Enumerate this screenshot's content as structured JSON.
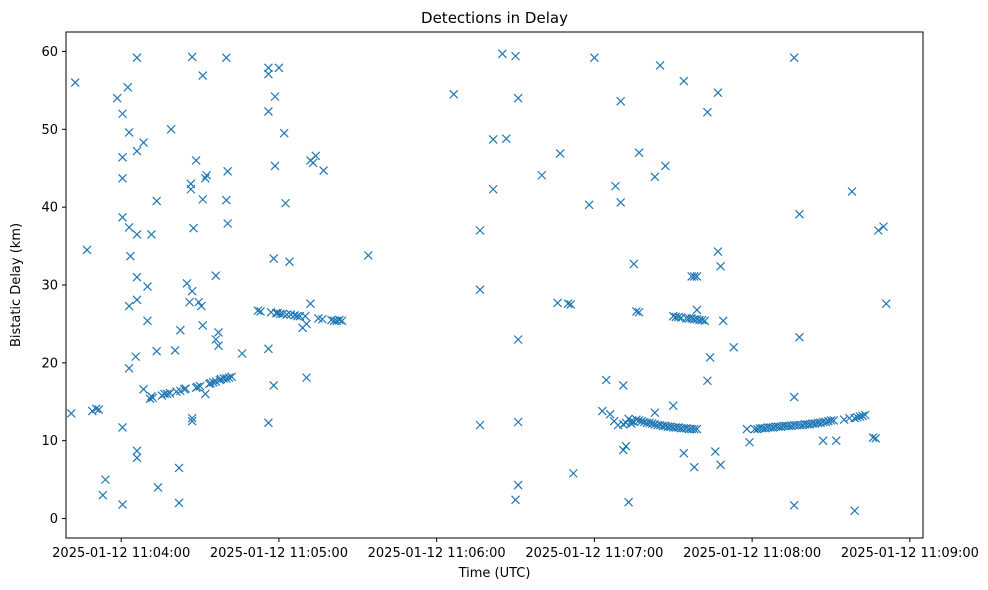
{
  "chart_data": {
    "type": "scatter",
    "title": "Detections in Delay",
    "xlabel": "Time (UTC)",
    "ylabel": "Bistatic Delay (km)",
    "x_unit": "seconds after 2025-01-12 11:04:00",
    "xlim": [
      -21,
      305
    ],
    "ylim": [
      -2.5,
      62.5
    ],
    "xticks": [
      {
        "value": 0,
        "label": "2025-01-12 11:04:00"
      },
      {
        "value": 60,
        "label": "2025-01-12 11:05:00"
      },
      {
        "value": 120,
        "label": "2025-01-12 11:06:00"
      },
      {
        "value": 180,
        "label": "2025-01-12 11:07:00"
      },
      {
        "value": 240,
        "label": "2025-01-12 11:08:00"
      },
      {
        "value": 300,
        "label": "2025-01-12 11:09:00"
      }
    ],
    "yticks": [
      {
        "value": 0,
        "label": "0"
      },
      {
        "value": 10,
        "label": "10"
      },
      {
        "value": 20,
        "label": "20"
      },
      {
        "value": 30,
        "label": "30"
      },
      {
        "value": 40,
        "label": "40"
      },
      {
        "value": 50,
        "label": "50"
      },
      {
        "value": 60,
        "label": "60"
      }
    ],
    "marker": "x",
    "color": "#1f77b4",
    "series": [
      {
        "name": "detections",
        "points": [
          [
            -19,
            13.5
          ],
          [
            -17.5,
            56
          ],
          [
            -13,
            34.5
          ],
          [
            -11,
            13.8
          ],
          [
            -9.5,
            14.1
          ],
          [
            -8.5,
            14
          ],
          [
            -7,
            3
          ],
          [
            -6,
            5
          ],
          [
            -1.5,
            54
          ],
          [
            0.5,
            1.8
          ],
          [
            0.5,
            11.7
          ],
          [
            0.5,
            38.7
          ],
          [
            0.5,
            43.7
          ],
          [
            0.5,
            46.4
          ],
          [
            0.5,
            52
          ],
          [
            2.5,
            55.4
          ],
          [
            3,
            49.6
          ],
          [
            3,
            37.4
          ],
          [
            3,
            27.3
          ],
          [
            3,
            19.3
          ],
          [
            3.5,
            33.7
          ],
          [
            6,
            59.2
          ],
          [
            6,
            47.2
          ],
          [
            6,
            36.5
          ],
          [
            6,
            31
          ],
          [
            6,
            28.1
          ],
          [
            5.5,
            20.8
          ],
          [
            6,
            8.7
          ],
          [
            6,
            7.8
          ],
          [
            8.5,
            48.3
          ],
          [
            8.5,
            16.6
          ],
          [
            10,
            29.8
          ],
          [
            10,
            25.4
          ],
          [
            11.5,
            15.7
          ],
          [
            11,
            15.4
          ],
          [
            12,
            15.5
          ],
          [
            11.5,
            36.5
          ],
          [
            13.5,
            40.8
          ],
          [
            13.5,
            21.5
          ],
          [
            14,
            4
          ],
          [
            15.5,
            15.8
          ],
          [
            16.5,
            16
          ],
          [
            17.5,
            16
          ],
          [
            18.5,
            16.1
          ],
          [
            19,
            50
          ],
          [
            20.5,
            21.6
          ],
          [
            21,
            16.3
          ],
          [
            22,
            2
          ],
          [
            22,
            6.5
          ],
          [
            22.5,
            16.4
          ],
          [
            22.5,
            24.2
          ],
          [
            24,
            16.6
          ],
          [
            24.5,
            16.7
          ],
          [
            25,
            30.2
          ],
          [
            26,
            27.8
          ],
          [
            26.5,
            43
          ],
          [
            26.5,
            42.3
          ],
          [
            27,
            29.2
          ],
          [
            27,
            12.9
          ],
          [
            27,
            12.5
          ],
          [
            27.5,
            37.3
          ],
          [
            27,
            59.3
          ],
          [
            28.5,
            46
          ],
          [
            28.5,
            16.8
          ],
          [
            29,
            16.9
          ],
          [
            29.5,
            27.8
          ],
          [
            30,
            17
          ],
          [
            30.5,
            27.3
          ],
          [
            31,
            41
          ],
          [
            31,
            24.8
          ],
          [
            31,
            56.9
          ],
          [
            32,
            16
          ],
          [
            32,
            43.7
          ],
          [
            32.5,
            44.1
          ],
          [
            33.5,
            17.3
          ],
          [
            34,
            17.4
          ],
          [
            35,
            17.5
          ],
          [
            36,
            31.2
          ],
          [
            36,
            17.6
          ],
          [
            36,
            23
          ],
          [
            37,
            23.9
          ],
          [
            37,
            22.2
          ],
          [
            37.5,
            17.8
          ],
          [
            38,
            17.9
          ],
          [
            39,
            18
          ],
          [
            40,
            59.2
          ],
          [
            40,
            40.9
          ],
          [
            40,
            18
          ],
          [
            40.5,
            37.9
          ],
          [
            40.5,
            44.6
          ],
          [
            41,
            18.1
          ],
          [
            42,
            18.2
          ],
          [
            46,
            21.2
          ],
          [
            52,
            26.7
          ],
          [
            53,
            26.6
          ],
          [
            56,
            57.9
          ],
          [
            56,
            57.1
          ],
          [
            56,
            52.3
          ],
          [
            56,
            21.8
          ],
          [
            56,
            12.3
          ],
          [
            57,
            26.5
          ],
          [
            58,
            33.4
          ],
          [
            58,
            17.1
          ],
          [
            58.5,
            45.3
          ],
          [
            58.5,
            54.2
          ],
          [
            59,
            26.4
          ],
          [
            59.5,
            26.4
          ],
          [
            60,
            57.9
          ],
          [
            60.5,
            26.3
          ],
          [
            61.5,
            26.3
          ],
          [
            62,
            49.5
          ],
          [
            62.5,
            40.5
          ],
          [
            63,
            26.2
          ],
          [
            64,
            33
          ],
          [
            64.5,
            26.2
          ],
          [
            66,
            26.1
          ],
          [
            67,
            26
          ],
          [
            68,
            26
          ],
          [
            69,
            24.5
          ],
          [
            70,
            26
          ],
          [
            70.5,
            18.1
          ],
          [
            70.5,
            25
          ],
          [
            72,
            27.6
          ],
          [
            72,
            46
          ],
          [
            73,
            45.7
          ],
          [
            74,
            46.6
          ],
          [
            75,
            25.7
          ],
          [
            76.5,
            25.6
          ],
          [
            77,
            44.7
          ],
          [
            80,
            25.5
          ],
          [
            81,
            25.4
          ],
          [
            82,
            25.4
          ],
          [
            83,
            25.5
          ],
          [
            84,
            25.4
          ],
          [
            94,
            33.8
          ],
          [
            126.5,
            54.5
          ],
          [
            136.5,
            29.4
          ],
          [
            136.5,
            37
          ],
          [
            136.5,
            12
          ],
          [
            141.5,
            42.3
          ],
          [
            141.5,
            48.7
          ],
          [
            146.5,
            48.8
          ],
          [
            145,
            59.7
          ],
          [
            150,
            59.4
          ],
          [
            151,
            54
          ],
          [
            151,
            4.3
          ],
          [
            150,
            2.4
          ],
          [
            151,
            23
          ],
          [
            151,
            12.4
          ],
          [
            160,
            44.1
          ],
          [
            166,
            27.7
          ],
          [
            167,
            46.9
          ],
          [
            170,
            27.6
          ],
          [
            171,
            27.5
          ],
          [
            172,
            5.8
          ],
          [
            178,
            40.3
          ],
          [
            180,
            59.2
          ],
          [
            183,
            13.8
          ],
          [
            184.5,
            17.8
          ],
          [
            186,
            13.4
          ],
          [
            187.5,
            12.5
          ],
          [
            188,
            42.7
          ],
          [
            189,
            12
          ],
          [
            190,
            40.6
          ],
          [
            190,
            53.6
          ],
          [
            191,
            12.1
          ],
          [
            191,
            8.8
          ],
          [
            191,
            17.1
          ],
          [
            192,
            12.3
          ],
          [
            192,
            9.3
          ],
          [
            193,
            2.1
          ],
          [
            193,
            12.8
          ],
          [
            194,
            12.2
          ],
          [
            194,
            12.5
          ],
          [
            195,
            32.7
          ],
          [
            195,
            12.4
          ],
          [
            196,
            26.6
          ],
          [
            196,
            12.7
          ],
          [
            197,
            12.6
          ],
          [
            197,
            26.5
          ],
          [
            197,
            47
          ],
          [
            198,
            12.5
          ],
          [
            199,
            12.4
          ],
          [
            200,
            12.3
          ],
          [
            201,
            12.3
          ],
          [
            202,
            12.2
          ],
          [
            203,
            12.1
          ],
          [
            203,
            43.9
          ],
          [
            203,
            13.6
          ],
          [
            204,
            12
          ],
          [
            205,
            58.2
          ],
          [
            205,
            12
          ],
          [
            206,
            11.9
          ],
          [
            207,
            45.3
          ],
          [
            207,
            11.9
          ],
          [
            208,
            11.8
          ],
          [
            209,
            11.8
          ],
          [
            210,
            11.7
          ],
          [
            210,
            14.5
          ],
          [
            210,
            26
          ],
          [
            211,
            11.7
          ],
          [
            211,
            25.9
          ],
          [
            212,
            11.7
          ],
          [
            212,
            25.9
          ],
          [
            213,
            11.6
          ],
          [
            213,
            25.8
          ],
          [
            214,
            8.4
          ],
          [
            214,
            11.6
          ],
          [
            214,
            56.2
          ],
          [
            215,
            11.6
          ],
          [
            215,
            25.7
          ],
          [
            216,
            11.5
          ],
          [
            216,
            25.7
          ],
          [
            217,
            11.5
          ],
          [
            217,
            25.7
          ],
          [
            217,
            31.1
          ],
          [
            218,
            31.1
          ],
          [
            218,
            11.5
          ],
          [
            218,
            25.6
          ],
          [
            218,
            6.6
          ],
          [
            219,
            31.1
          ],
          [
            219,
            11.5
          ],
          [
            219,
            25.6
          ],
          [
            219,
            26.8
          ],
          [
            220,
            25.5
          ],
          [
            221,
            25.5
          ],
          [
            222,
            25.4
          ],
          [
            223,
            17.7
          ],
          [
            223,
            52.2
          ],
          [
            224,
            20.7
          ],
          [
            226,
            8.6
          ],
          [
            227,
            34.3
          ],
          [
            227,
            54.7
          ],
          [
            228,
            32.4
          ],
          [
            228,
            6.9
          ],
          [
            229,
            25.4
          ],
          [
            233,
            22
          ],
          [
            238,
            11.5
          ],
          [
            239,
            9.8
          ],
          [
            241,
            11.5
          ],
          [
            242,
            11.5
          ],
          [
            243,
            11.6
          ],
          [
            244,
            11.6
          ],
          [
            245,
            11.6
          ],
          [
            246,
            11.7
          ],
          [
            247,
            11.7
          ],
          [
            248,
            11.7
          ],
          [
            249,
            11.8
          ],
          [
            250,
            11.8
          ],
          [
            251,
            11.8
          ],
          [
            252,
            11.9
          ],
          [
            253,
            11.9
          ],
          [
            254,
            11.9
          ],
          [
            255,
            11.9
          ],
          [
            256,
            12
          ],
          [
            256,
            59.2
          ],
          [
            256,
            15.6
          ],
          [
            256,
            1.7
          ],
          [
            257,
            12
          ],
          [
            258,
            12
          ],
          [
            258,
            39.1
          ],
          [
            258,
            23.3
          ],
          [
            259,
            12
          ],
          [
            260,
            12.1
          ],
          [
            261,
            12.1
          ],
          [
            262,
            12.1
          ],
          [
            263,
            12.2
          ],
          [
            264,
            12.2
          ],
          [
            265,
            12.3
          ],
          [
            266,
            12.3
          ],
          [
            267,
            12.4
          ],
          [
            267,
            10
          ],
          [
            268,
            12.4
          ],
          [
            269,
            12.5
          ],
          [
            270,
            12.6
          ],
          [
            271,
            12.6
          ],
          [
            272,
            10
          ],
          [
            275,
            12.7
          ],
          [
            277,
            12.9
          ],
          [
            278,
            42
          ],
          [
            279,
            1
          ],
          [
            279,
            12.9
          ],
          [
            280,
            13
          ],
          [
            281,
            13.1
          ],
          [
            282,
            13.2
          ],
          [
            283,
            13.3
          ],
          [
            286,
            10.4
          ],
          [
            287,
            10.3
          ],
          [
            288,
            37
          ],
          [
            290,
            37.5
          ],
          [
            291,
            27.6
          ]
        ]
      }
    ]
  }
}
